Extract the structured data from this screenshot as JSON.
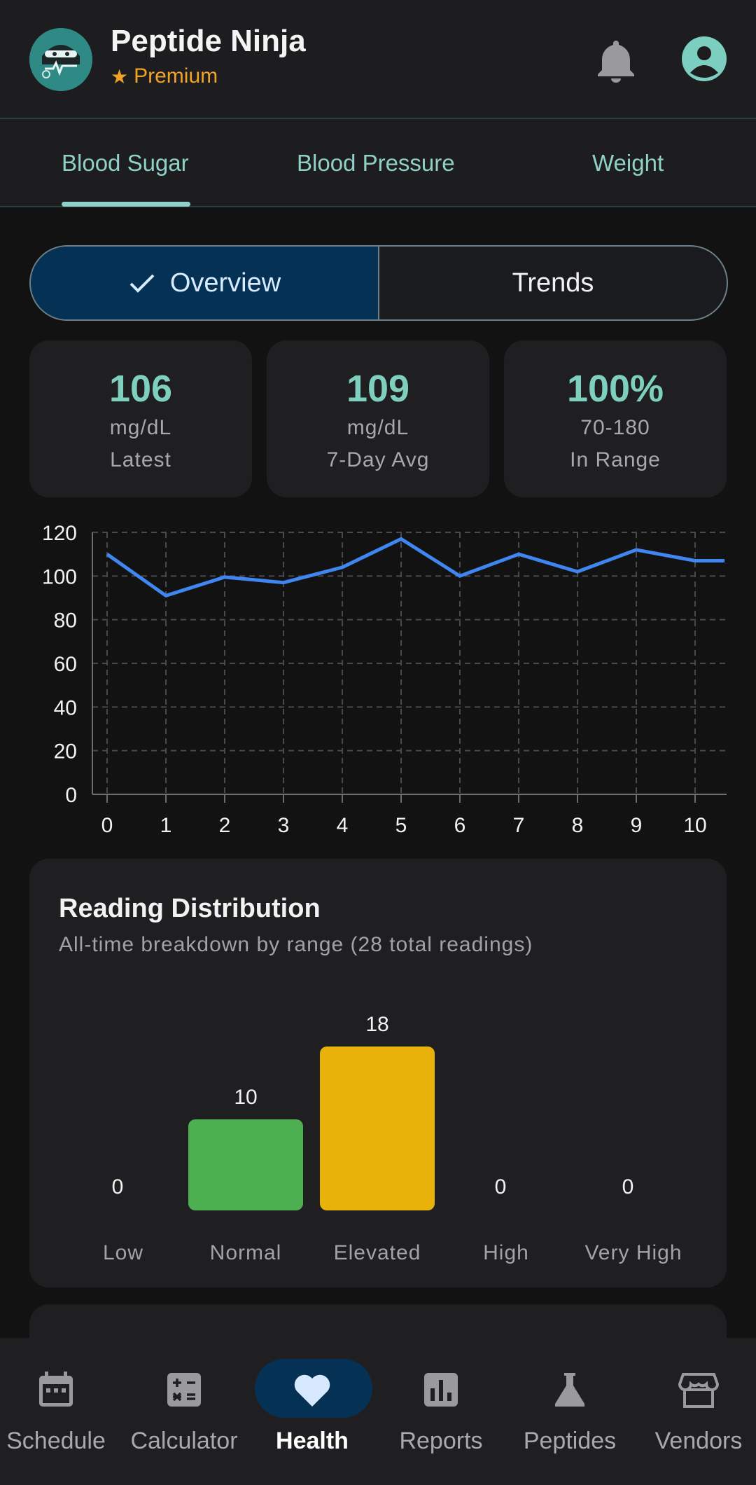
{
  "header": {
    "app_name": "Peptide Ninja",
    "badge": "Premium"
  },
  "tabs": [
    "Blood Sugar",
    "Blood Pressure",
    "Weight"
  ],
  "segments": {
    "overview": "Overview",
    "trends": "Trends"
  },
  "stats": [
    {
      "value": "106",
      "unit": "mg/dL",
      "label": "Latest"
    },
    {
      "value": "109",
      "unit": "mg/dL",
      "label": "7-Day Avg"
    },
    {
      "value": "100%",
      "unit": "70-180",
      "label": "In Range"
    }
  ],
  "chart_data": [
    {
      "type": "line",
      "x": [
        0,
        1,
        2,
        3,
        4,
        5,
        6,
        7,
        8,
        9,
        10,
        10.5
      ],
      "series": [
        {
          "values": [
            110,
            91,
            99.5,
            97,
            104,
            117,
            100,
            110,
            102,
            112,
            107,
            107
          ]
        }
      ],
      "xlim": [
        0,
        10.5
      ],
      "ylim": [
        0,
        120
      ],
      "xticks": [
        0,
        1,
        2,
        3,
        4,
        5,
        6,
        7,
        8,
        9,
        10
      ],
      "yticks": [
        0,
        20,
        40,
        60,
        80,
        100,
        120
      ],
      "grid": true,
      "color": "#3f86f0"
    },
    {
      "type": "bar",
      "title": "Reading Distribution",
      "subtitle": "All-time breakdown by range (28 total readings)",
      "categories": [
        "Low",
        "Normal",
        "Elevated",
        "High",
        "Very High"
      ],
      "values": [
        0,
        10,
        18,
        0,
        0
      ],
      "colors": [
        "#4caf50",
        "#4caf50",
        "#e8b20b",
        "#e8b20b",
        "#e8b20b"
      ]
    }
  ],
  "nav": [
    {
      "label": "Schedule",
      "icon": "calendar-icon"
    },
    {
      "label": "Calculator",
      "icon": "calculator-icon"
    },
    {
      "label": "Health",
      "icon": "heart-icon"
    },
    {
      "label": "Reports",
      "icon": "bar-chart-icon"
    },
    {
      "label": "Peptides",
      "icon": "flask-icon"
    },
    {
      "label": "Vendors",
      "icon": "store-icon"
    }
  ]
}
